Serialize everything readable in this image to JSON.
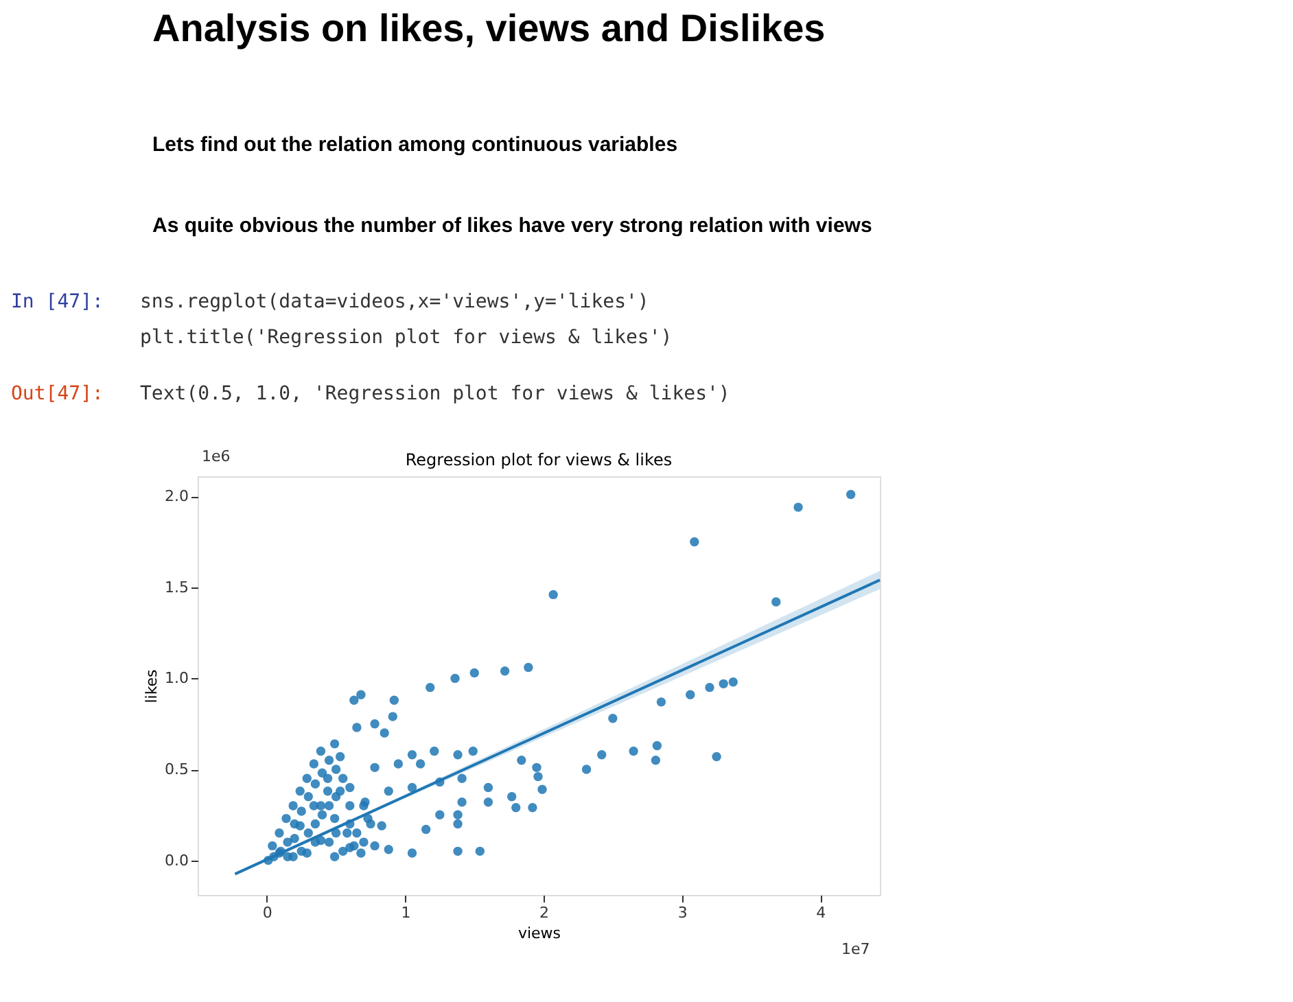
{
  "chart_data": {
    "type": "scatter",
    "title": "Regression plot for views & likes",
    "xlabel": "views",
    "ylabel": "likes",
    "xlim": [
      -0.5,
      4.43
    ],
    "ylim": [
      -0.19,
      2.11
    ],
    "xticks": [
      0,
      1,
      2,
      3,
      4
    ],
    "yticks": [
      {
        "value": 0,
        "label": "0.0"
      },
      {
        "value": 0.5,
        "label": "0.5"
      },
      {
        "value": 1,
        "label": "1.0"
      },
      {
        "value": 1.5,
        "label": "1.5"
      },
      {
        "value": 2,
        "label": "2.0"
      }
    ],
    "grid": false,
    "annotations": [
      "Analysis on likes, views and Dislikes",
      "Lets find out the relation among continuous variables",
      "As quite obvious the number of likes have very strong relation with views",
      "In [47]:",
      "sns.regplot(data=videos,x='views',y='likes')",
      "plt.title('Regression plot for views & likes')",
      "Out[47]:",
      "Text(0.5, 1.0, 'Regression plot for views & likes')",
      "1e6",
      "1e7"
    ],
    "series": [
      {
        "color": "#1f77b4",
        "marker": "circle",
        "x": [
          0.68,
          0.63,
          0.92,
          1.18,
          1.36,
          1.5,
          1.72,
          1.89,
          0.65,
          0.78,
          0.91,
          0.85,
          1.05,
          1.21,
          1.38,
          1.49,
          1.11,
          0.95,
          0.78,
          1.84,
          0.71,
          0.88,
          1.05,
          1.25,
          1.41,
          1.6,
          1.41,
          1.6,
          1.77,
          1.25,
          1.38,
          1.15,
          1.38,
          0.88,
          1.05,
          1.38,
          1.54,
          0.01,
          0.04,
          0.09,
          0.14,
          0.19,
          0.24,
          0.29,
          0.34,
          0.39,
          0.49,
          0.53,
          0.44,
          0.39,
          0.49,
          0.58,
          0.63,
          0.68,
          0.78,
          0.29,
          0.19,
          0.49,
          0.39,
          0.24,
          0.6,
          0.53,
          0.73,
          0.83,
          0.09,
          0.34,
          0.44,
          4.22,
          3.84,
          3.09,
          2.07,
          3.68,
          3.37,
          3.3,
          3.2,
          3.06,
          2.85,
          2.5,
          1.95,
          1.96,
          1.99,
          1.92,
          1.8,
          2.31,
          2.42,
          2.65,
          2.82,
          2.81,
          3.25,
          0.05,
          0.1,
          0.15,
          0.2,
          0.25,
          0.3,
          0.35,
          0.4,
          0.45,
          0.5,
          0.55,
          0.6,
          0.65,
          0.7,
          0.3,
          0.35,
          0.4,
          0.45,
          0.5,
          0.55,
          0.6,
          0.5,
          0.45,
          0.35,
          0.25,
          0.2,
          0.15,
          0.6,
          0.75,
          0.7
        ],
        "values": [
          0.91,
          0.88,
          0.88,
          0.95,
          1.0,
          1.03,
          1.04,
          1.06,
          0.73,
          0.75,
          0.79,
          0.7,
          0.58,
          0.6,
          0.58,
          0.6,
          0.53,
          0.53,
          0.51,
          0.55,
          0.32,
          0.38,
          0.4,
          0.43,
          0.45,
          0.4,
          0.32,
          0.32,
          0.35,
          0.25,
          0.25,
          0.17,
          0.2,
          0.06,
          0.04,
          0.05,
          0.05,
          0.0,
          0.08,
          0.15,
          0.23,
          0.3,
          0.38,
          0.45,
          0.53,
          0.6,
          0.64,
          0.57,
          0.45,
          0.3,
          0.23,
          0.15,
          0.08,
          0.04,
          0.08,
          0.04,
          0.02,
          0.02,
          0.11,
          0.19,
          0.3,
          0.38,
          0.23,
          0.19,
          0.04,
          0.3,
          0.38,
          2.01,
          1.94,
          1.75,
          1.46,
          1.42,
          0.98,
          0.97,
          0.95,
          0.91,
          0.87,
          0.78,
          0.51,
          0.46,
          0.39,
          0.29,
          0.29,
          0.5,
          0.58,
          0.6,
          0.63,
          0.55,
          0.57,
          0.02,
          0.05,
          0.1,
          0.12,
          0.05,
          0.15,
          0.2,
          0.25,
          0.1,
          0.15,
          0.05,
          0.2,
          0.15,
          0.1,
          0.35,
          0.42,
          0.48,
          0.55,
          0.5,
          0.45,
          0.4,
          0.35,
          0.3,
          0.1,
          0.27,
          0.2,
          0.02,
          0.07,
          0.2,
          0.3
        ]
      },
      {
        "type": "line",
        "color": "#1f77b4",
        "line_style": "solid",
        "marker": "none",
        "x": [
          -0.23,
          1.0,
          4.43
        ],
        "values": [
          -0.075,
          0.352,
          1.54
        ],
        "lower": [
          -0.085,
          0.342,
          1.49
        ],
        "upper": [
          -0.065,
          0.362,
          1.59
        ]
      }
    ]
  }
}
